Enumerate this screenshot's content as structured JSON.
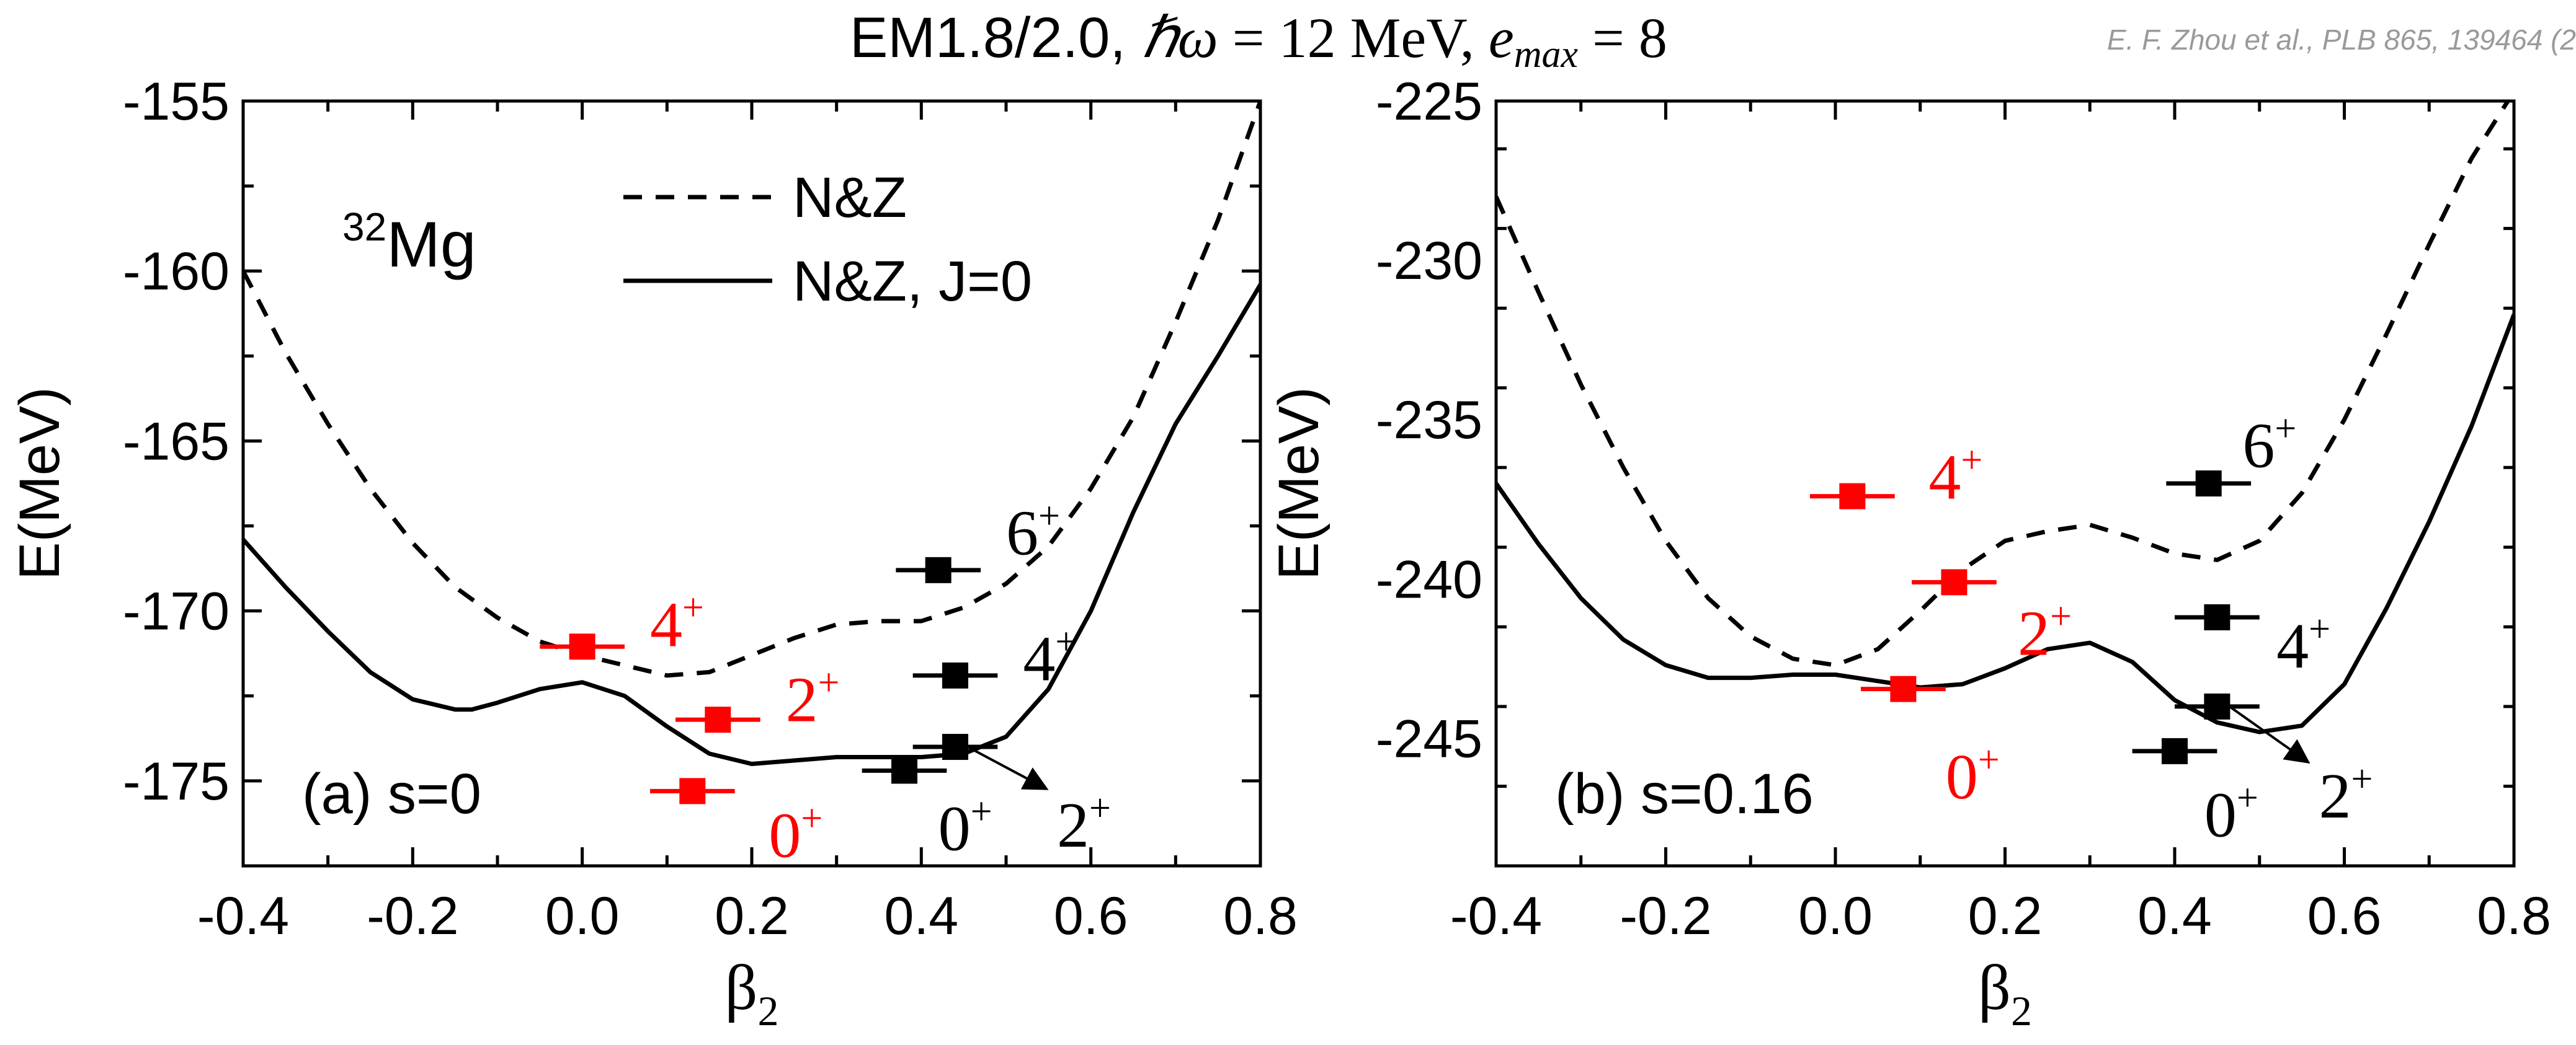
{
  "figure": {
    "title_prefix": "EM1.8/2.0, ",
    "title_hw": "ℏω",
    "title_eq1": " = 12 MeV, ",
    "title_e": "e",
    "title_emax_sub": "max",
    "title_eq2": " = 8",
    "credit": "E. F. Zhou et al., PLB 865, 139464 (2"
  },
  "colors": {
    "black": "#000000",
    "red": "#ff0000",
    "credit_gray": "#9a9a9a"
  },
  "chart_data": [
    {
      "type": "line",
      "panel_label": "(a) s=0",
      "nucleus_mass": "32",
      "nucleus_symbol": "Mg",
      "xlabel": "β",
      "xlabel_sub": "2",
      "ylabel": "E(MeV)",
      "xlim": [
        -0.4,
        0.8
      ],
      "ylim": [
        -177.5,
        -155
      ],
      "x_ticks": [
        -0.4,
        -0.2,
        0.0,
        0.2,
        0.4,
        0.6,
        0.8
      ],
      "x_tick_labels": [
        "-0.4",
        "-0.2",
        "0.0",
        "0.2",
        "0.4",
        "0.6",
        "0.8"
      ],
      "y_ticks": [
        -155,
        -160,
        -165,
        -170,
        -175
      ],
      "y_tick_labels": [
        "-155",
        "-160",
        "-165",
        "-170",
        "-175"
      ],
      "legend": {
        "placement": "top-center",
        "entries": [
          {
            "label": "N&Z",
            "style": "dashed"
          },
          {
            "label": "N&Z, J=0",
            "style": "solid"
          }
        ]
      },
      "series": [
        {
          "name": "N&Z",
          "style": "dashed",
          "x": [
            -0.4,
            -0.35,
            -0.3,
            -0.25,
            -0.2,
            -0.15,
            -0.1,
            -0.05,
            0.0,
            0.05,
            0.1,
            0.15,
            0.2,
            0.25,
            0.3,
            0.35,
            0.4,
            0.45,
            0.5,
            0.55,
            0.6,
            0.65,
            0.7,
            0.75,
            0.8
          ],
          "y": [
            -160.0,
            -162.4,
            -164.5,
            -166.4,
            -168.0,
            -169.3,
            -170.2,
            -170.9,
            -171.3,
            -171.6,
            -171.9,
            -171.8,
            -171.3,
            -170.8,
            -170.4,
            -170.3,
            -170.3,
            -169.9,
            -169.2,
            -168.1,
            -166.4,
            -164.3,
            -161.5,
            -158.5,
            -155.0
          ]
        },
        {
          "name": "N&Z, J=0",
          "style": "solid",
          "x": [
            -0.4,
            -0.35,
            -0.3,
            -0.25,
            -0.2,
            -0.15,
            -0.13,
            -0.1,
            -0.05,
            0.0,
            0.05,
            0.1,
            0.15,
            0.2,
            0.25,
            0.3,
            0.35,
            0.4,
            0.45,
            0.5,
            0.55,
            0.6,
            0.65,
            0.7,
            0.75,
            0.8
          ],
          "y": [
            -167.9,
            -169.3,
            -170.6,
            -171.8,
            -172.6,
            -172.9,
            -172.9,
            -172.7,
            -172.3,
            -172.1,
            -172.5,
            -173.4,
            -174.2,
            -174.5,
            -174.4,
            -174.3,
            -174.3,
            -174.3,
            -174.2,
            -173.7,
            -172.3,
            -170.0,
            -167.1,
            -164.5,
            -162.5,
            -160.4
          ]
        }
      ],
      "states": [
        {
          "x": 0.0,
          "y": -171.05,
          "spin": "4",
          "parity": "+",
          "color": "red",
          "label_x": 0.08,
          "label_y": -170.4
        },
        {
          "x": 0.16,
          "y": -173.2,
          "spin": "2",
          "parity": "+",
          "color": "red",
          "label_x": 0.24,
          "label_y": -172.6
        },
        {
          "x": 0.13,
          "y": -175.3,
          "spin": "0",
          "parity": "+",
          "color": "red",
          "label_x": 0.22,
          "label_y": -176.6
        },
        {
          "x": 0.42,
          "y": -168.8,
          "spin": "6",
          "parity": "+",
          "color": "black",
          "label_x": 0.5,
          "label_y": -167.7
        },
        {
          "x": 0.44,
          "y": -171.9,
          "spin": "4",
          "parity": "+",
          "color": "black",
          "label_x": 0.52,
          "label_y": -171.4
        },
        {
          "x": 0.38,
          "y": -174.7,
          "spin": "0",
          "parity": "+",
          "color": "black",
          "label_x": 0.42,
          "label_y": -176.4
        },
        {
          "x": 0.44,
          "y": -174.0,
          "spin": "2",
          "parity": "+",
          "color": "black",
          "label_x": 0.56,
          "label_y": -176.3,
          "arrow_to": [
            0.545,
            -175.2
          ]
        }
      ]
    },
    {
      "type": "line",
      "panel_label": "(b) s=0.16",
      "xlabel": "β",
      "xlabel_sub": "2",
      "ylabel": "E(MeV)",
      "xlim": [
        -0.4,
        0.8
      ],
      "ylim": [
        -249,
        -225
      ],
      "x_ticks": [
        -0.4,
        -0.2,
        0.0,
        0.2,
        0.4,
        0.6,
        0.8
      ],
      "x_tick_labels": [
        "-0.4",
        "-0.2",
        "0.0",
        "0.2",
        "0.4",
        "0.6",
        "0.8"
      ],
      "y_ticks": [
        -225,
        -230,
        -235,
        -240,
        -245
      ],
      "y_tick_labels": [
        "-225",
        "-230",
        "-235",
        "-240",
        "-245"
      ],
      "series": [
        {
          "name": "N&Z",
          "style": "dashed",
          "x": [
            -0.4,
            -0.35,
            -0.3,
            -0.25,
            -0.2,
            -0.15,
            -0.1,
            -0.05,
            0.0,
            0.05,
            0.1,
            0.15,
            0.2,
            0.25,
            0.3,
            0.35,
            0.4,
            0.45,
            0.5,
            0.55,
            0.6,
            0.65,
            0.7,
            0.75,
            0.8
          ],
          "y": [
            -228.0,
            -231.0,
            -233.9,
            -236.5,
            -238.8,
            -240.6,
            -241.8,
            -242.5,
            -242.7,
            -242.2,
            -241.0,
            -239.7,
            -238.8,
            -238.5,
            -238.3,
            -238.7,
            -239.2,
            -239.4,
            -238.8,
            -237.3,
            -235.0,
            -232.3,
            -229.5,
            -226.8,
            -224.7
          ]
        },
        {
          "name": "N&Z, J=0",
          "style": "solid",
          "x": [
            -0.4,
            -0.35,
            -0.3,
            -0.25,
            -0.2,
            -0.15,
            -0.1,
            -0.05,
            0.0,
            0.05,
            0.1,
            0.15,
            0.2,
            0.25,
            0.3,
            0.35,
            0.4,
            0.45,
            0.5,
            0.55,
            0.6,
            0.65,
            0.7,
            0.75,
            0.8
          ],
          "y": [
            -237.0,
            -238.9,
            -240.6,
            -241.9,
            -242.7,
            -243.1,
            -243.1,
            -243.0,
            -243.0,
            -243.2,
            -243.4,
            -243.3,
            -242.8,
            -242.2,
            -242.0,
            -242.6,
            -243.8,
            -244.5,
            -244.8,
            -244.6,
            -243.3,
            -240.9,
            -238.2,
            -235.2,
            -231.7
          ]
        }
      ],
      "states": [
        {
          "x": 0.02,
          "y": -237.4,
          "spin": "4",
          "parity": "+",
          "color": "red",
          "label_x": 0.11,
          "label_y": -236.8
        },
        {
          "x": 0.14,
          "y": -240.1,
          "spin": "2",
          "parity": "+",
          "color": "red",
          "label_x": 0.215,
          "label_y": -241.7
        },
        {
          "x": 0.08,
          "y": -243.45,
          "spin": "0",
          "parity": "+",
          "color": "red",
          "label_x": 0.13,
          "label_y": -246.2
        },
        {
          "x": 0.44,
          "y": -237.0,
          "spin": "6",
          "parity": "+",
          "color": "black",
          "label_x": 0.48,
          "label_y": -235.8
        },
        {
          "x": 0.45,
          "y": -241.2,
          "spin": "4",
          "parity": "+",
          "color": "black",
          "label_x": 0.52,
          "label_y": -242.1
        },
        {
          "x": 0.4,
          "y": -245.4,
          "spin": "0",
          "parity": "+",
          "color": "black",
          "label_x": 0.435,
          "label_y": -247.4
        },
        {
          "x": 0.45,
          "y": -244.0,
          "spin": "2",
          "parity": "+",
          "color": "black",
          "label_x": 0.57,
          "label_y": -246.8,
          "arrow_to": [
            0.555,
            -245.7
          ]
        }
      ]
    }
  ]
}
